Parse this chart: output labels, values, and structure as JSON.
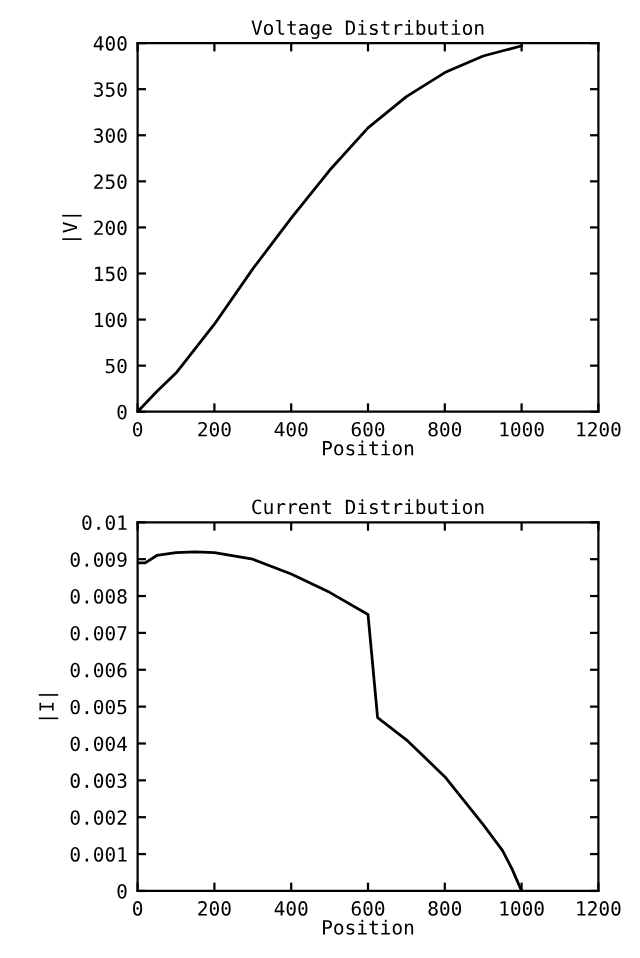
{
  "chart_data": [
    {
      "type": "line",
      "title": "Voltage Distribution",
      "xlabel": "Position",
      "ylabel": "|V|",
      "xlim": [
        0,
        1200
      ],
      "ylim": [
        0,
        400
      ],
      "xticks": [
        0,
        200,
        400,
        600,
        800,
        1000,
        1200
      ],
      "yticks": [
        0,
        50,
        100,
        150,
        200,
        250,
        300,
        350,
        400
      ],
      "grid": false,
      "legend": false,
      "series": [
        {
          "color": "#000000",
          "x": [
            0,
            50,
            100,
            200,
            300,
            400,
            500,
            600,
            700,
            800,
            900,
            1000
          ],
          "values": [
            0,
            22,
            42,
            95,
            155,
            210,
            262,
            308,
            342,
            368,
            386,
            397
          ]
        }
      ]
    },
    {
      "type": "line",
      "title": "Current Distribution",
      "xlabel": "Position",
      "ylabel": "|I|",
      "xlim": [
        0,
        1200
      ],
      "ylim": [
        0,
        0.01
      ],
      "xticks": [
        0,
        200,
        400,
        600,
        800,
        1000,
        1200
      ],
      "yticks": [
        0,
        0.001,
        0.002,
        0.003,
        0.004,
        0.005,
        0.006,
        0.007,
        0.008,
        0.009,
        0.01
      ],
      "grid": false,
      "legend": false,
      "series": [
        {
          "color": "#000000",
          "x": [
            0,
            20,
            50,
            100,
            150,
            200,
            300,
            400,
            500,
            600,
            625,
            700,
            800,
            900,
            950,
            975,
            1000
          ],
          "values": [
            0.0089,
            0.0089,
            0.0091,
            0.00918,
            0.0092,
            0.00918,
            0.009,
            0.0086,
            0.0081,
            0.0075,
            0.0047,
            0.0041,
            0.0031,
            0.0018,
            0.0011,
            0.0006,
            0
          ]
        }
      ]
    }
  ]
}
